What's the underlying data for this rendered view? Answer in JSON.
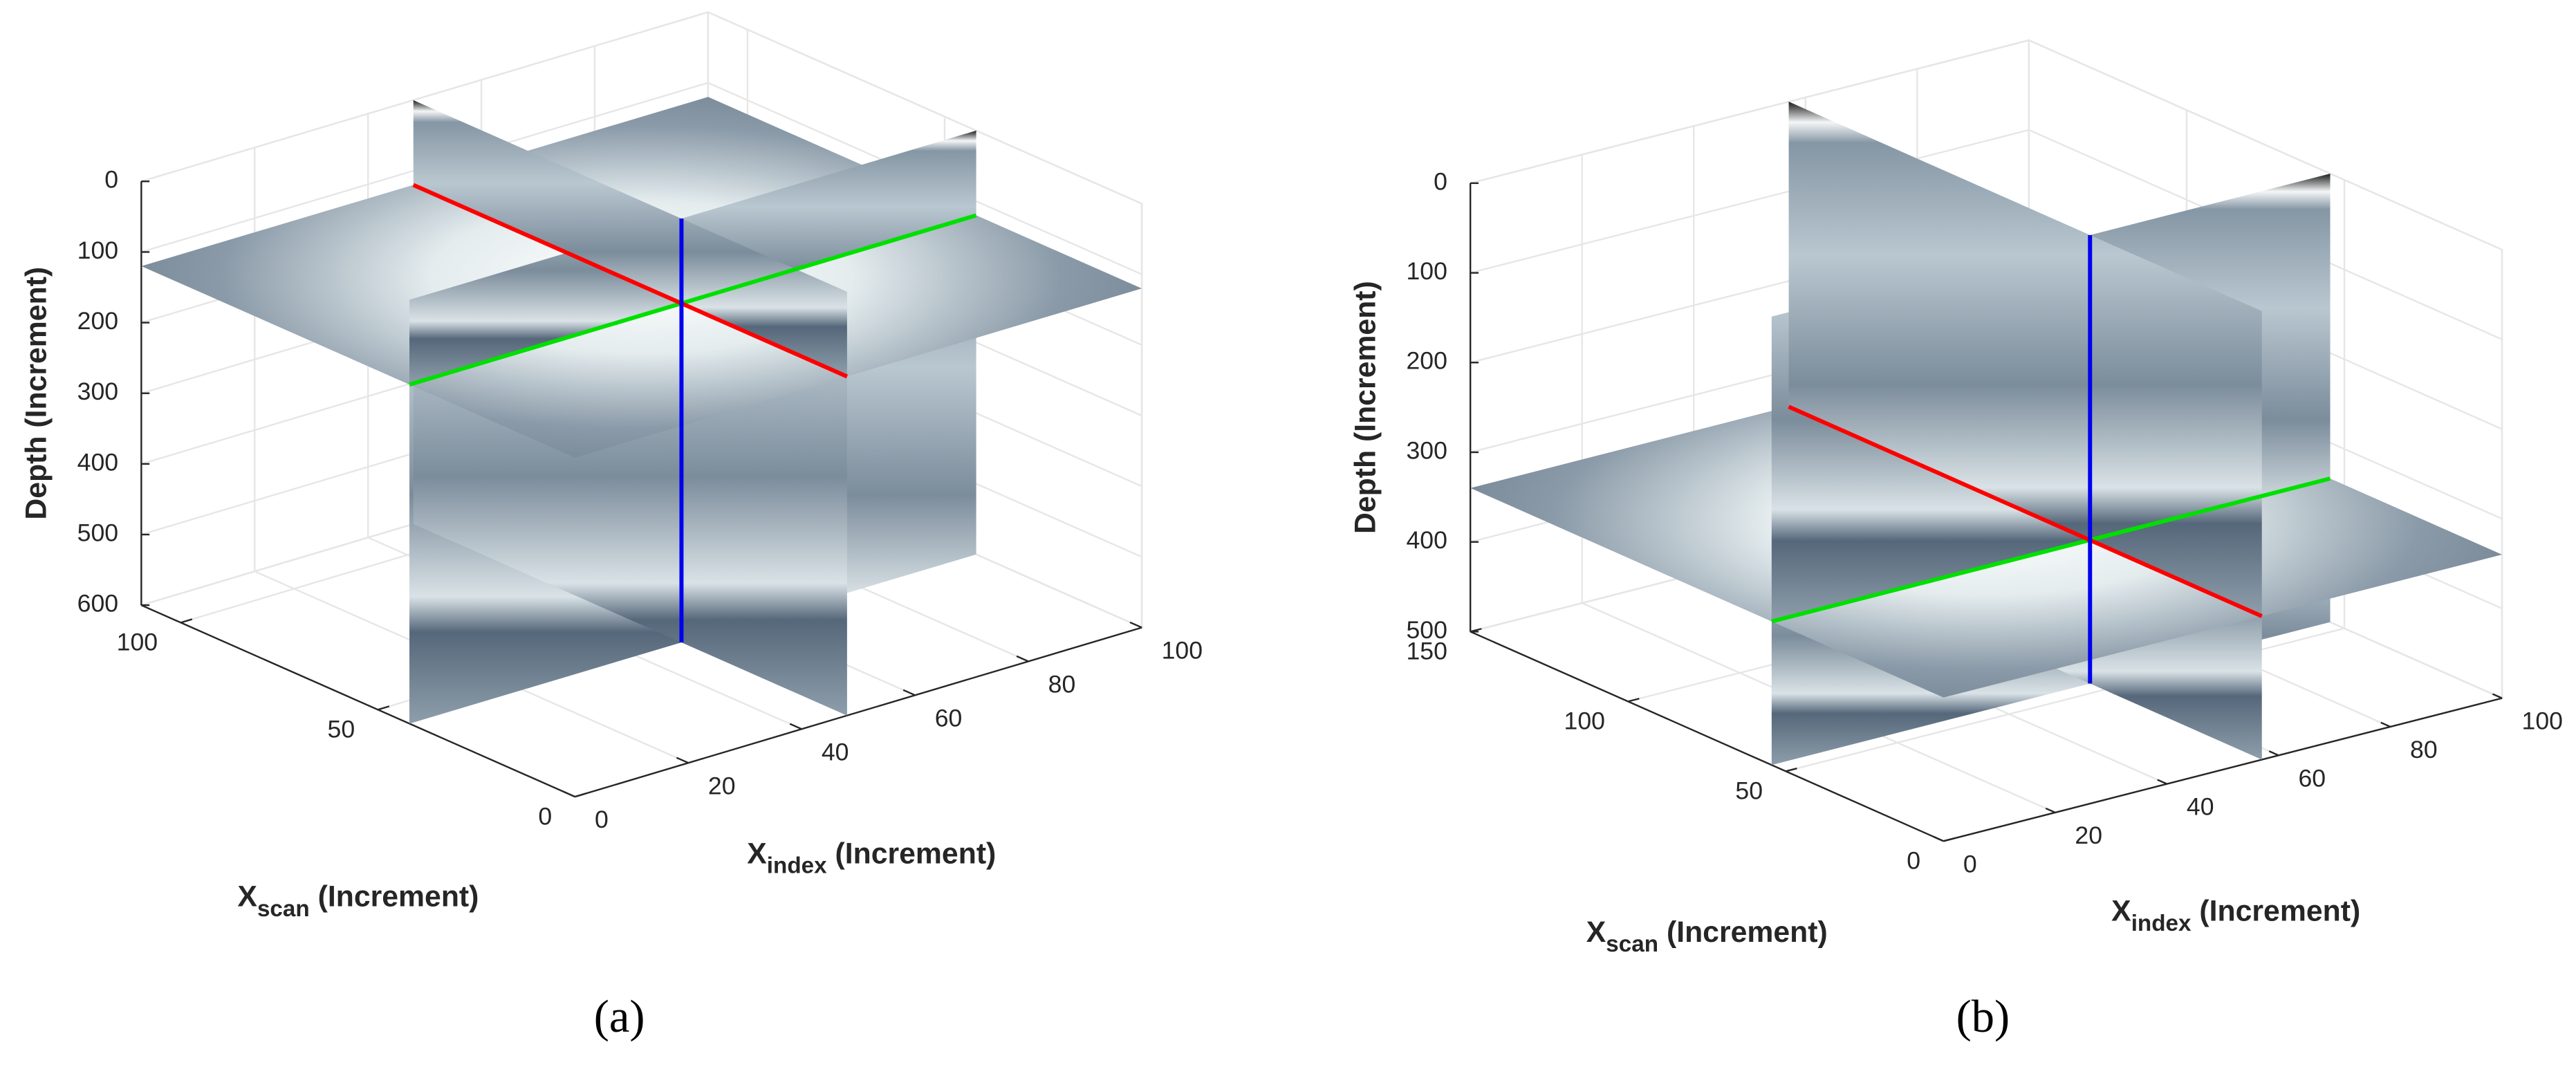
{
  "chart_data": [
    {
      "type": "slice3d",
      "panel_label": "(a)",
      "zlabel": "Depth (Increment)",
      "xlabel": {
        "symbol": "X",
        "subscript": "index",
        "unit": " (Increment)"
      },
      "ylabel": {
        "symbol": "X",
        "subscript": "scan",
        "unit": " (Increment)"
      },
      "xlim": [
        0,
        100
      ],
      "xticks": [
        0,
        20,
        40,
        60,
        80,
        100
      ],
      "ylim": [
        0,
        110
      ],
      "yticks": [
        0,
        50,
        100
      ],
      "zlim": [
        0,
        600
      ],
      "zticks": [
        0,
        100,
        200,
        300,
        400,
        500,
        600
      ],
      "z_reversed": true,
      "grid": true
    },
    {
      "type": "slice3d",
      "panel_label": "(b)",
      "zlabel": "Depth (Increment)",
      "xlabel": {
        "symbol": "X",
        "subscript": "index",
        "unit": " (Increment)"
      },
      "ylabel": {
        "symbol": "X",
        "subscript": "scan",
        "unit": " (Increment)"
      },
      "xlim": [
        0,
        100
      ],
      "xticks": [
        0,
        20,
        40,
        60,
        80,
        100
      ],
      "ylim": [
        0,
        150
      ],
      "yticks": [
        0,
        50,
        100,
        150
      ],
      "zlim": [
        0,
        500
      ],
      "zticks": [
        0,
        100,
        200,
        300,
        400,
        500
      ],
      "z_reversed": true,
      "grid": true
    }
  ]
}
